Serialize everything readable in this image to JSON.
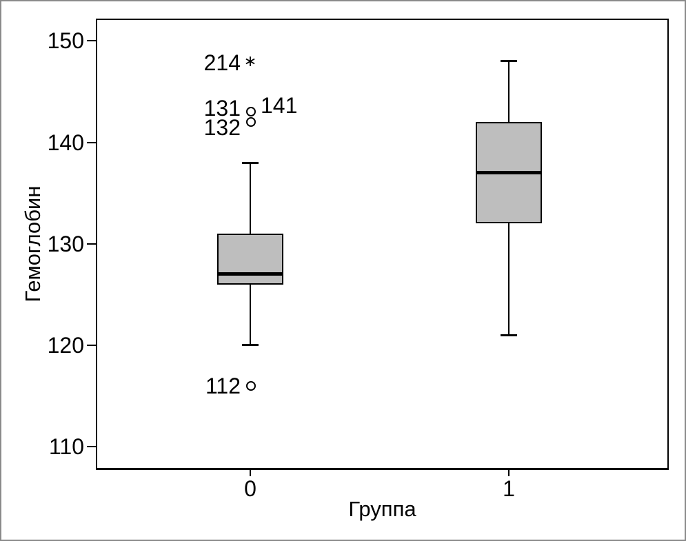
{
  "window": {
    "background": "#ffffff",
    "outer_border_color": "#8a8a8a"
  },
  "chart_data": {
    "type": "boxplot",
    "title": "",
    "xlabel": "Группа",
    "ylabel": "Гемоглобин",
    "categories": [
      "0",
      "1"
    ],
    "y_ticks": [
      150,
      140,
      130,
      120,
      110
    ],
    "ylim": [
      107.7,
      152.2
    ],
    "grid": false,
    "legend": "none",
    "box_fill_color": "#bebebe",
    "line_color": "#000000",
    "series": [
      {
        "category": "0",
        "whisker_low": 120,
        "q1": 126,
        "median": 127,
        "q3": 131,
        "whisker_high": 138,
        "outliers": [
          {
            "case_label": "214",
            "value": 148,
            "marker": "asterisk",
            "extreme": true,
            "draw_marker": true,
            "label_side": "left",
            "label_dy": 2
          },
          {
            "case_label": "131",
            "value": 143,
            "marker": "circle",
            "extreme": false,
            "draw_marker": true,
            "label_side": "left",
            "label_dy": -5
          },
          {
            "case_label": "141",
            "value": 143,
            "marker": "circle",
            "extreme": false,
            "draw_marker": false,
            "label_side": "right",
            "label_dy": -9
          },
          {
            "case_label": "132",
            "value": 142,
            "marker": "circle",
            "extreme": false,
            "draw_marker": true,
            "label_side": "left",
            "label_dy": 8
          },
          {
            "case_label": "112",
            "value": 116,
            "marker": "circle",
            "extreme": false,
            "draw_marker": true,
            "label_side": "left",
            "label_dy": 0
          }
        ]
      },
      {
        "category": "1",
        "whisker_low": 121,
        "q1": 132,
        "median": 137,
        "q3": 142,
        "whisker_high": 148,
        "outliers": []
      }
    ]
  }
}
